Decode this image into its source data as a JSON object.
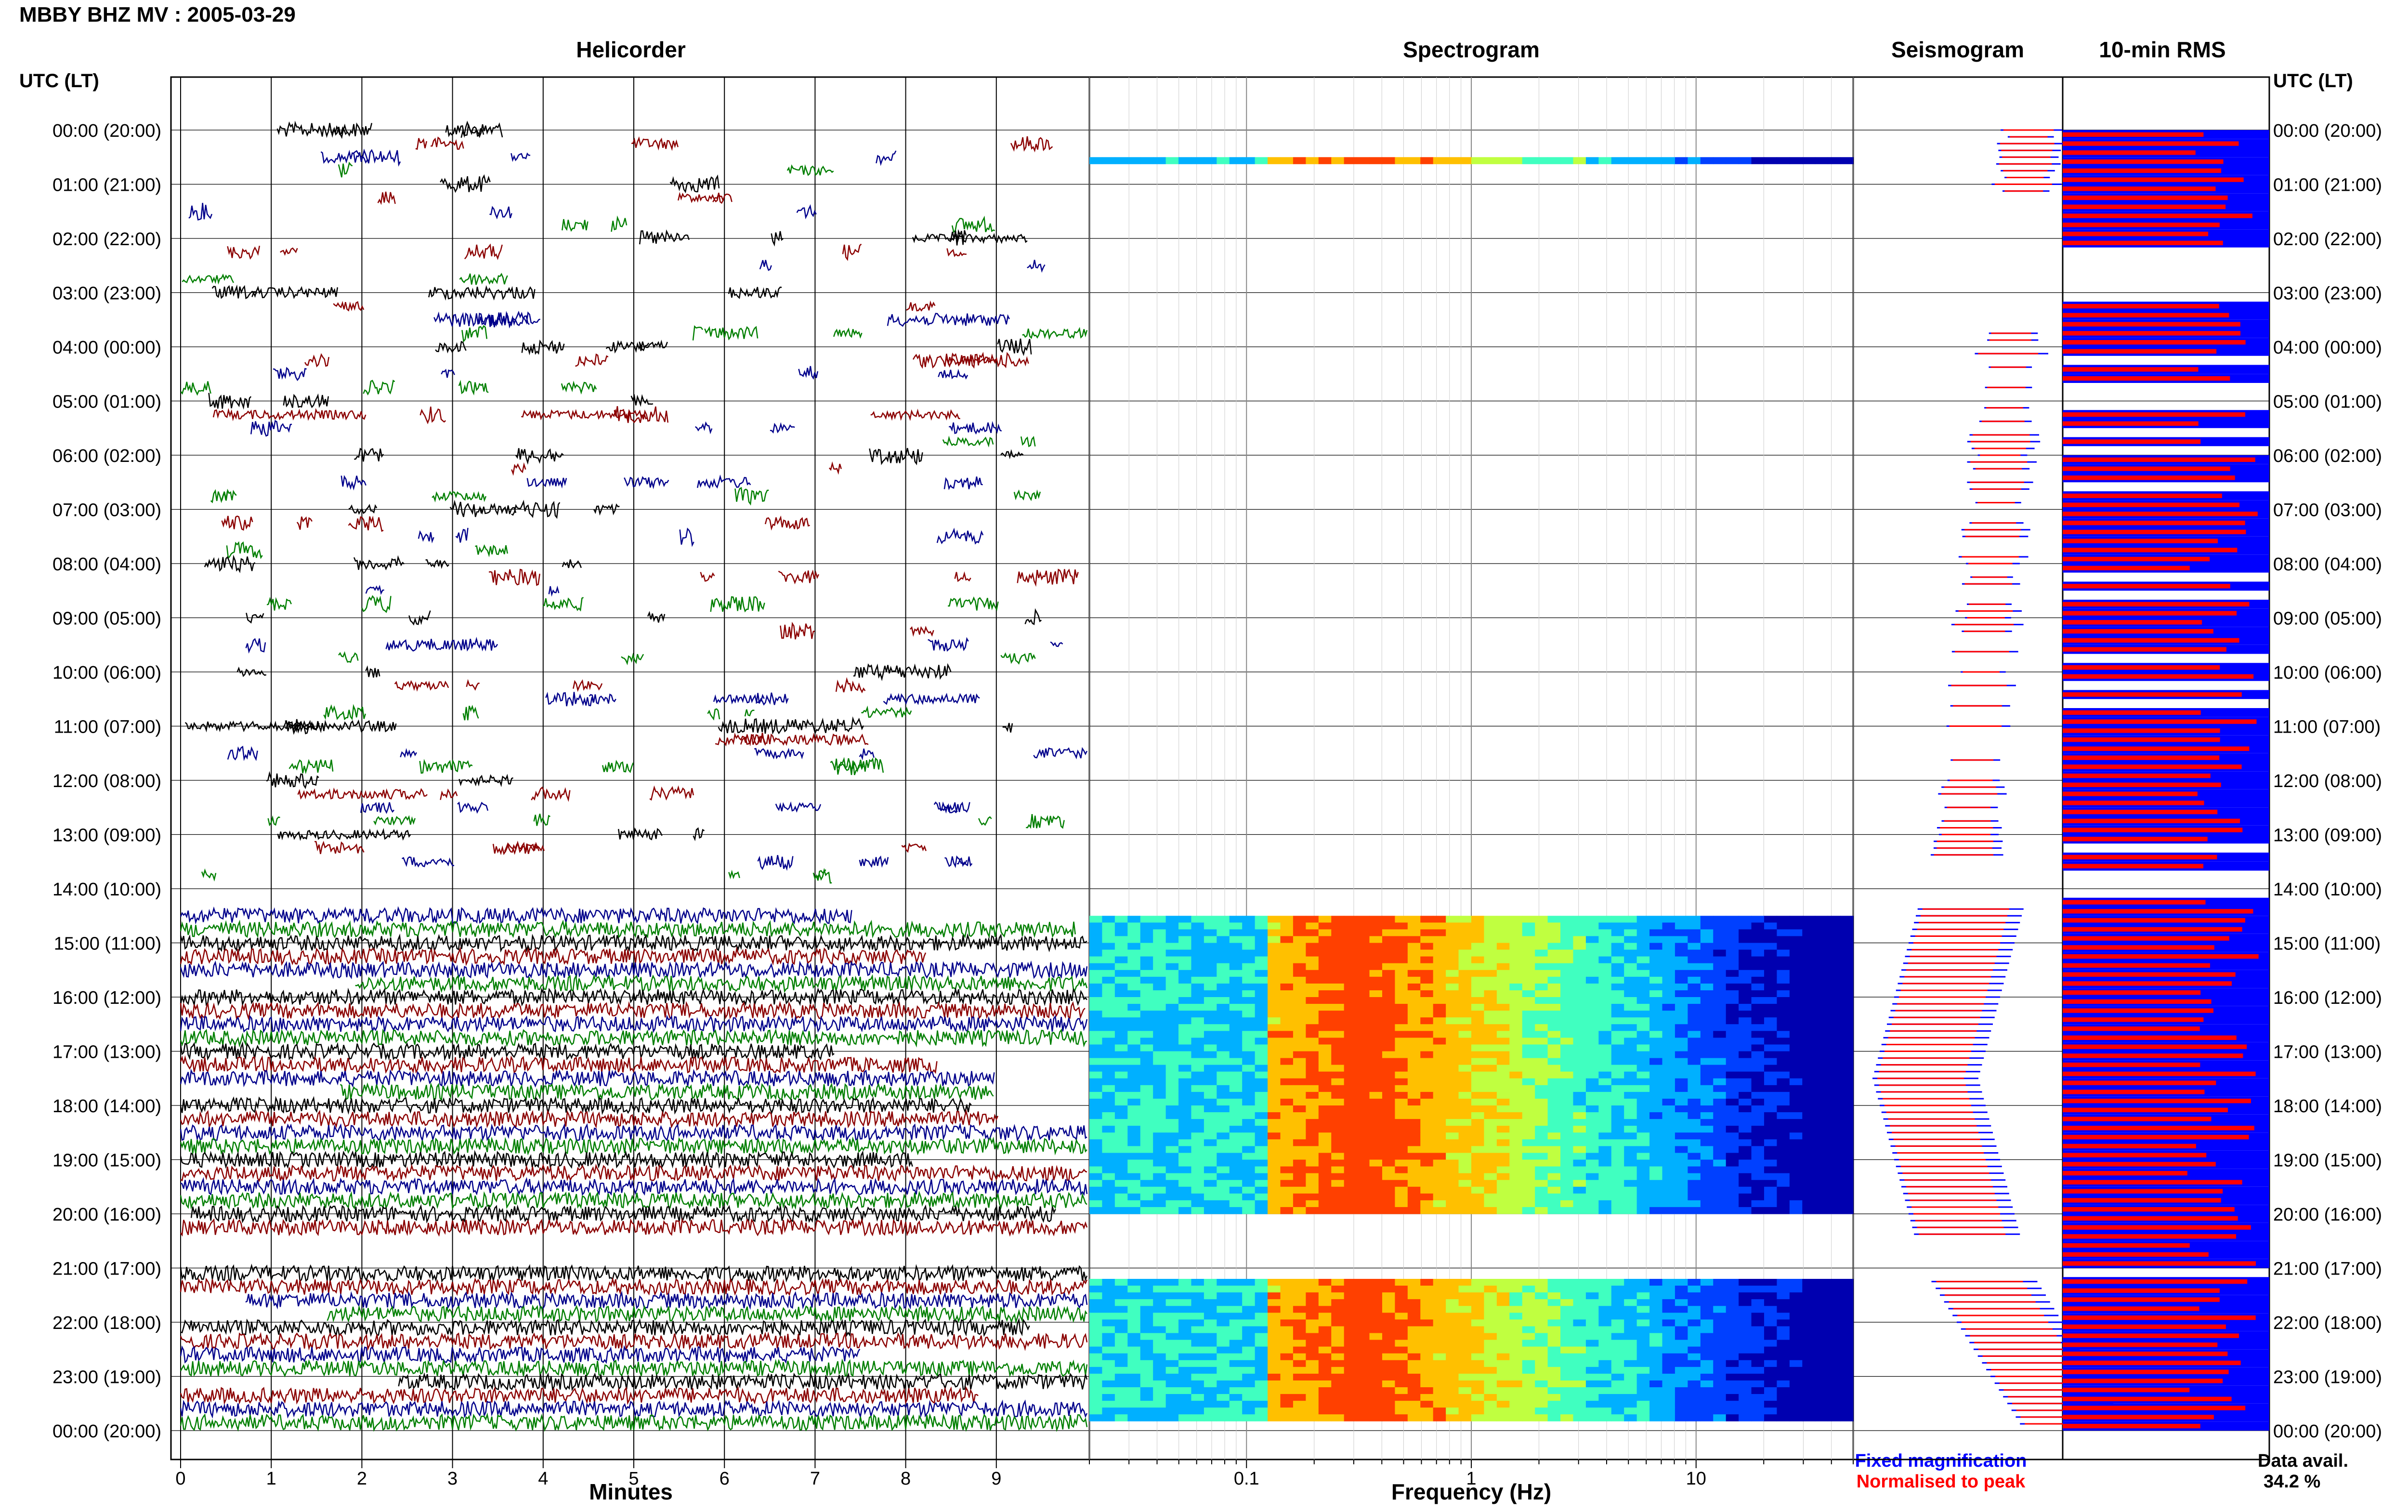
{
  "title": "MBBY BHZ MV : 2005-03-29",
  "panels": {
    "helicorder": "Helicorder",
    "spectrogram": "Spectrogram",
    "seismogram": "Seismogram",
    "rms": "10-min RMS"
  },
  "time_axis_label": "UTC (LT)",
  "legend": {
    "fixed": "Fixed magnification",
    "normalised": "Normalised to peak",
    "fixed_color": "#0000ff",
    "normalised_color": "#ff0000"
  },
  "data_availability": {
    "label": "Data avail.",
    "value": "34.2 %"
  },
  "chart_data": [
    {
      "type": "line",
      "panel": "Helicorder",
      "xlabel": "Minutes",
      "x_ticks": [
        "0",
        "1",
        "2",
        "3",
        "4",
        "5",
        "6",
        "7",
        "8",
        "9"
      ],
      "xlim": [
        0,
        10
      ],
      "y_ticks": [
        "00:00 (20:00)",
        "01:00 (21:00)",
        "02:00 (22:00)",
        "03:00 (23:00)",
        "04:00 (00:00)",
        "05:00 (01:00)",
        "06:00 (02:00)",
        "07:00 (03:00)",
        "08:00 (04:00)",
        "09:00 (05:00)",
        "10:00 (06:00)",
        "11:00 (07:00)",
        "12:00 (08:00)",
        "13:00 (09:00)",
        "14:00 (10:00)",
        "15:00 (11:00)",
        "16:00 (12:00)",
        "17:00 (13:00)",
        "18:00 (14:00)",
        "19:00 (15:00)",
        "20:00 (16:00)",
        "21:00 (17:00)",
        "22:00 (18:00)",
        "23:00 (19:00)",
        "00:00 (20:00)"
      ],
      "trace_colors": [
        "#000000",
        "#8b0000",
        "#00008b",
        "#007f00"
      ],
      "grid": true
    },
    {
      "type": "heatmap",
      "panel": "Spectrogram",
      "xlabel": "Frequency (Hz)",
      "x_scale": "log",
      "x_ticks": [
        "0.1",
        "1",
        "10"
      ],
      "xlim": [
        0.02,
        50
      ],
      "colormap": [
        "#0000b0",
        "#0040ff",
        "#00b0ff",
        "#40ffc0",
        "#c0ff40",
        "#ffc000",
        "#ff4000"
      ],
      "active_hours": [
        [
          0.5,
          0.55
        ],
        [
          14.5,
          16.0
        ],
        [
          16.0,
          20.0
        ],
        [
          21.2,
          23.8
        ]
      ],
      "peak_frequency_band_hz": [
        0.15,
        0.6
      ]
    },
    {
      "type": "area",
      "panel": "Seismogram",
      "series": [
        {
          "name": "Fixed magnification",
          "color": "#0000ff"
        },
        {
          "name": "Normalised to peak",
          "color": "#ff0000"
        }
      ]
    },
    {
      "type": "bar",
      "panel": "10-min RMS",
      "series": [
        {
          "name": "Fixed magnification",
          "color": "#0000ff"
        },
        {
          "name": "Normalised to peak",
          "color": "#ff0000"
        }
      ]
    }
  ]
}
